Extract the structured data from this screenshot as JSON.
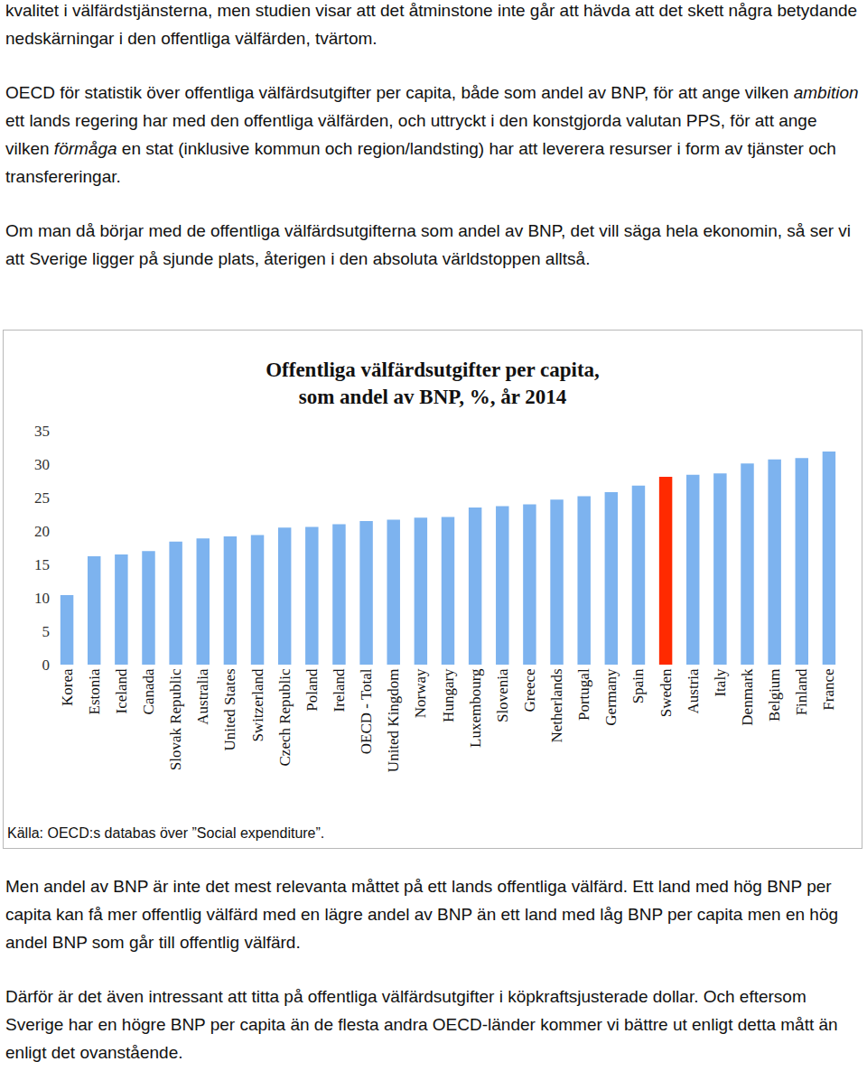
{
  "paragraphs_top": [
    [
      "kvalitet i välfärdstjänsterna, men studien visar att det åtminstone inte går att hävda att det skett några betydande nedskärningar i den offentliga välfärden, tvärtom."
    ],
    [
      "OECD för statistik över offentliga välfärdsutgifter per capita, både som andel av BNP, för att ange vilken ",
      {
        "em": "ambition"
      },
      " ett lands regering har med den offentliga välfärden, och uttryckt i den konstgjorda valutan PPS, för att ange vilken ",
      {
        "em": "förmåga"
      },
      " en stat (inklusive kommun och region/landsting) har att leverera resurser i form av tjänster och transfereringar."
    ],
    [
      "Om man då börjar med de offentliga välfärdsutgifterna som andel av BNP, det vill säga hela ekonomin, så ser vi att Sverige ligger på sjunde plats, återigen i den absoluta världstoppen alltså."
    ]
  ],
  "chart_data": {
    "type": "bar",
    "title": "Offentliga välfärdsutgifter per capita,\nsom andel av BNP, %, år 2014",
    "categories": [
      "Korea",
      "Estonia",
      "Iceland",
      "Canada",
      "Slovak Republic",
      "Australia",
      "United States",
      "Switzerland",
      "Czech Republic",
      "Poland",
      "Ireland",
      "OECD - Total",
      "United Kingdom",
      "Norway",
      "Hungary",
      "Luxembourg",
      "Slovenia",
      "Greece",
      "Netherlands",
      "Portugal",
      "Germany",
      "Spain",
      "Sweden",
      "Austria",
      "Italy",
      "Denmark",
      "Belgium",
      "Finland",
      "France"
    ],
    "values": [
      10.4,
      16.2,
      16.5,
      17.0,
      18.4,
      18.9,
      19.2,
      19.4,
      20.5,
      20.6,
      21.0,
      21.5,
      21.7,
      22.0,
      22.1,
      23.5,
      23.7,
      24.0,
      24.7,
      25.2,
      25.8,
      26.8,
      28.1,
      28.4,
      28.6,
      30.1,
      30.7,
      30.9,
      31.9
    ],
    "colors": [
      "#7db3ef",
      "#7db3ef",
      "#7db3ef",
      "#7db3ef",
      "#7db3ef",
      "#7db3ef",
      "#7db3ef",
      "#7db3ef",
      "#7db3ef",
      "#7db3ef",
      "#7db3ef",
      "#7db3ef",
      "#7db3ef",
      "#7db3ef",
      "#7db3ef",
      "#7db3ef",
      "#7db3ef",
      "#7db3ef",
      "#7db3ef",
      "#7db3ef",
      "#7db3ef",
      "#7db3ef",
      "#ff2a00",
      "#7db3ef",
      "#7db3ef",
      "#7db3ef",
      "#7db3ef",
      "#7db3ef",
      "#7db3ef"
    ],
    "ylim": [
      0,
      35
    ],
    "yticks": [
      0,
      5,
      10,
      15,
      20,
      25,
      30,
      35
    ],
    "grid": false
  },
  "source": "Källa: OECD:s databas över ”Social expenditure”.",
  "paragraphs_bottom": [
    [
      "Men andel av BNP är inte det mest relevanta måttet på ett lands offentliga välfärd. Ett land med hög BNP per capita kan få mer offentlig välfärd med en lägre andel av BNP än ett land med låg BNP per capita men en hög andel BNP som går till offentlig välfärd."
    ],
    [
      "Därför är det även intressant att titta på offentliga välfärdsutgifter i köpkraftsjusterade dollar. Och eftersom Sverige har en högre BNP per capita än de flesta andra OECD-länder kommer vi bättre ut enligt detta mått än enligt det ovanstående."
    ]
  ]
}
